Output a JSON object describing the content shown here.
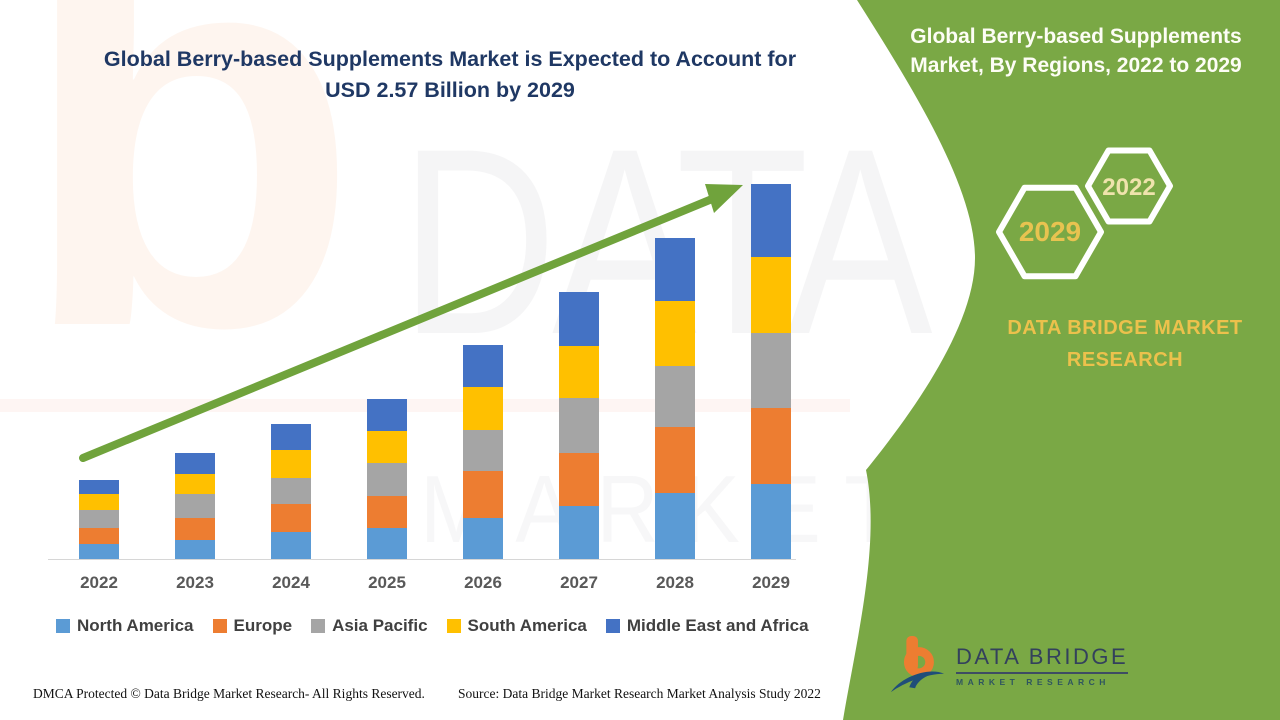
{
  "header": {
    "title": "Global Berry-based Supplements Market is Expected to Account for USD 2.57 Billion by 2029"
  },
  "side_panel": {
    "title": "Global Berry-based Supplements Market, By Regions, 2022 to 2029",
    "hexagon_back_label": "2029",
    "hexagon_front_label": "2022",
    "brand_text": "DATA BRIDGE MARKET RESEARCH",
    "logo_name": "DATA BRIDGE",
    "logo_subtext": "MARKET RESEARCH",
    "colors": {
      "panel_green": "#7AA845",
      "hexagon_stroke": "#FFFFFF",
      "back_hex_text": "#E8C350",
      "front_hex_text": "#EFE3AC",
      "brand_text_gold": "#ECC14C"
    }
  },
  "watermark": {
    "letter": "b",
    "line1": "DATA BRIDGE",
    "line2": "MARKET RESEARCH"
  },
  "footer": {
    "dmca": "DMCA Protected © Data Bridge Market Research- All Rights Reserved.",
    "source": "Source: Data Bridge Market Research Market Analysis Study 2022"
  },
  "chart_data": {
    "type": "bar",
    "stacked": true,
    "title": "Global Berry-based Supplements Market is Expected to Account for USD 2.57 Billion by 2029",
    "xlabel": "",
    "ylabel": "",
    "units": "USD Billion (values estimated from bar heights; 2029 total labeled 2.57)",
    "grid": false,
    "legend_position": "bottom",
    "y_axis_shown": false,
    "ylim": [
      0,
      2.8
    ],
    "categories": [
      "2022",
      "2023",
      "2024",
      "2025",
      "2026",
      "2027",
      "2028",
      "2029"
    ],
    "series": [
      {
        "name": "North America",
        "color": "#5B9BD5",
        "values": [
          0.11,
          0.14,
          0.19,
          0.22,
          0.29,
          0.37,
          0.46,
          0.52
        ]
      },
      {
        "name": "Europe",
        "color": "#ED7D31",
        "values": [
          0.11,
          0.15,
          0.19,
          0.22,
          0.32,
          0.36,
          0.45,
          0.52
        ]
      },
      {
        "name": "Asia Pacific",
        "color": "#A5A5A5",
        "values": [
          0.12,
          0.16,
          0.18,
          0.22,
          0.28,
          0.38,
          0.42,
          0.51
        ]
      },
      {
        "name": "South America",
        "color": "#FFC000",
        "values": [
          0.11,
          0.14,
          0.19,
          0.22,
          0.29,
          0.35,
          0.44,
          0.52
        ]
      },
      {
        "name": "Middle East and Africa",
        "color": "#4472C4",
        "values": [
          0.1,
          0.14,
          0.18,
          0.22,
          0.29,
          0.37,
          0.43,
          0.5
        ]
      }
    ],
    "totals": [
      0.55,
      0.73,
      0.93,
      1.1,
      1.47,
      1.83,
      2.2,
      2.57
    ],
    "annotations": {
      "trend_arrow": "upward growth arrow from 2022 bar to 2029 bar",
      "arrow_color": "#70A33C"
    }
  }
}
